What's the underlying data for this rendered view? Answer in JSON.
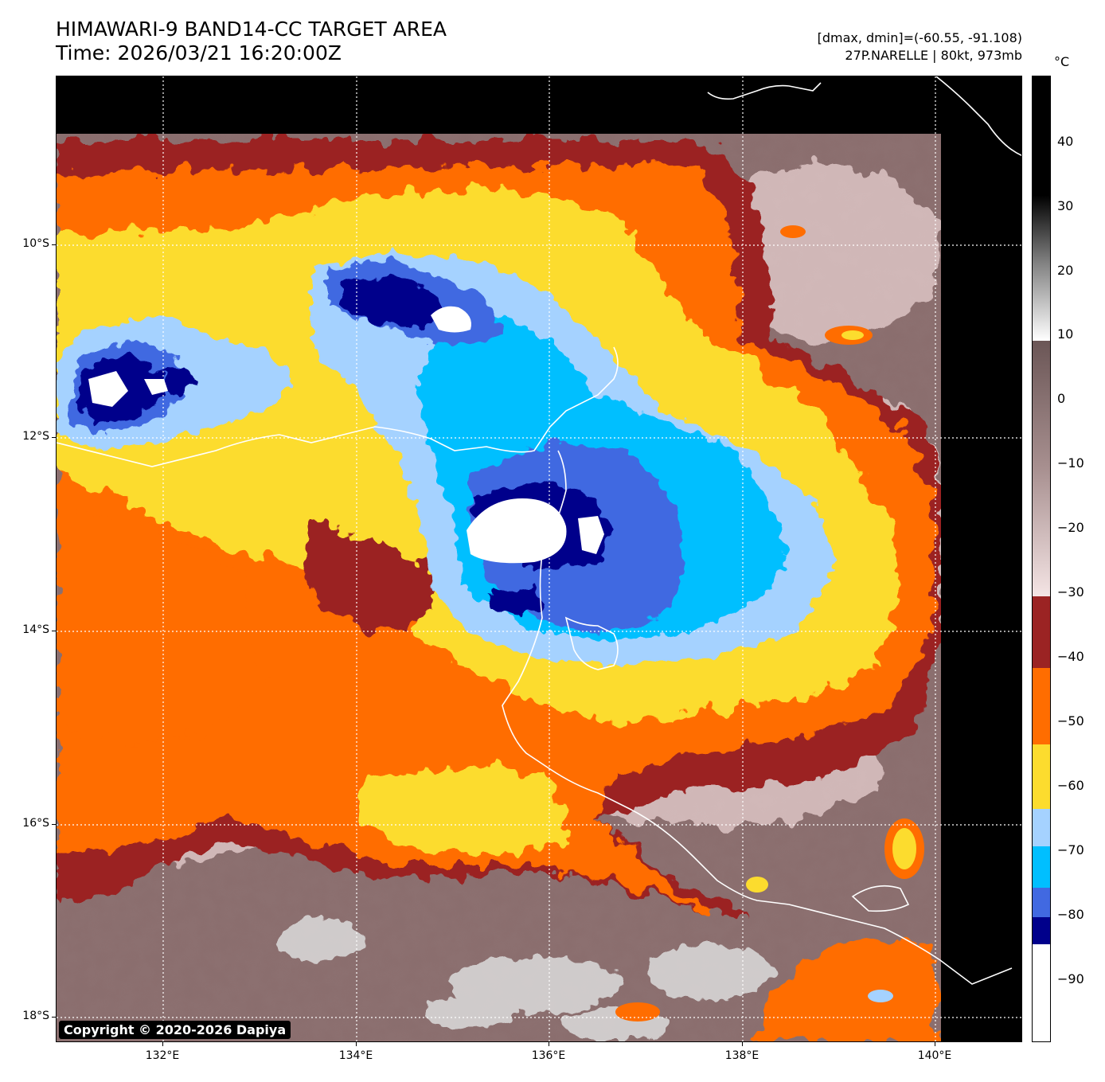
{
  "header": {
    "title_line1": "HIMAWARI-9 BAND14-CC TARGET AREA",
    "title_line2": "Time: 2026/03/21 16:20:00Z",
    "range_info": "[dmax, dmin]=(-60.55, -91.108)",
    "storm_info": "27P.NARELLE | 80kt, 973mb"
  },
  "map": {
    "lat_labels": [
      "10°S",
      "12°S",
      "14°S",
      "16°S",
      "18°S"
    ],
    "lon_labels": [
      "132°E",
      "134°E",
      "136°E",
      "138°E",
      "140°E"
    ],
    "copyright": "Copyright © 2020-2026 Dapiya"
  },
  "colorbar": {
    "unit": "°C",
    "tick_labels": [
      "40",
      "30",
      "20",
      "10",
      "0",
      "−10",
      "−20",
      "−30",
      "−40",
      "−50",
      "−60",
      "−70",
      "−80",
      "−90"
    ],
    "colors": {
      "white_cold": "#ffffff",
      "navy": "#00008b",
      "royal_blue": "#4169e1",
      "deep_sky": "#00bfff",
      "light_blue": "#a5d2ff",
      "yellow": "#fcdc2e",
      "orange": "#ff6d00",
      "brick": "#9b2323",
      "pink_warm": "#f1dcdc",
      "brown_warm": "#6b5656"
    }
  }
}
